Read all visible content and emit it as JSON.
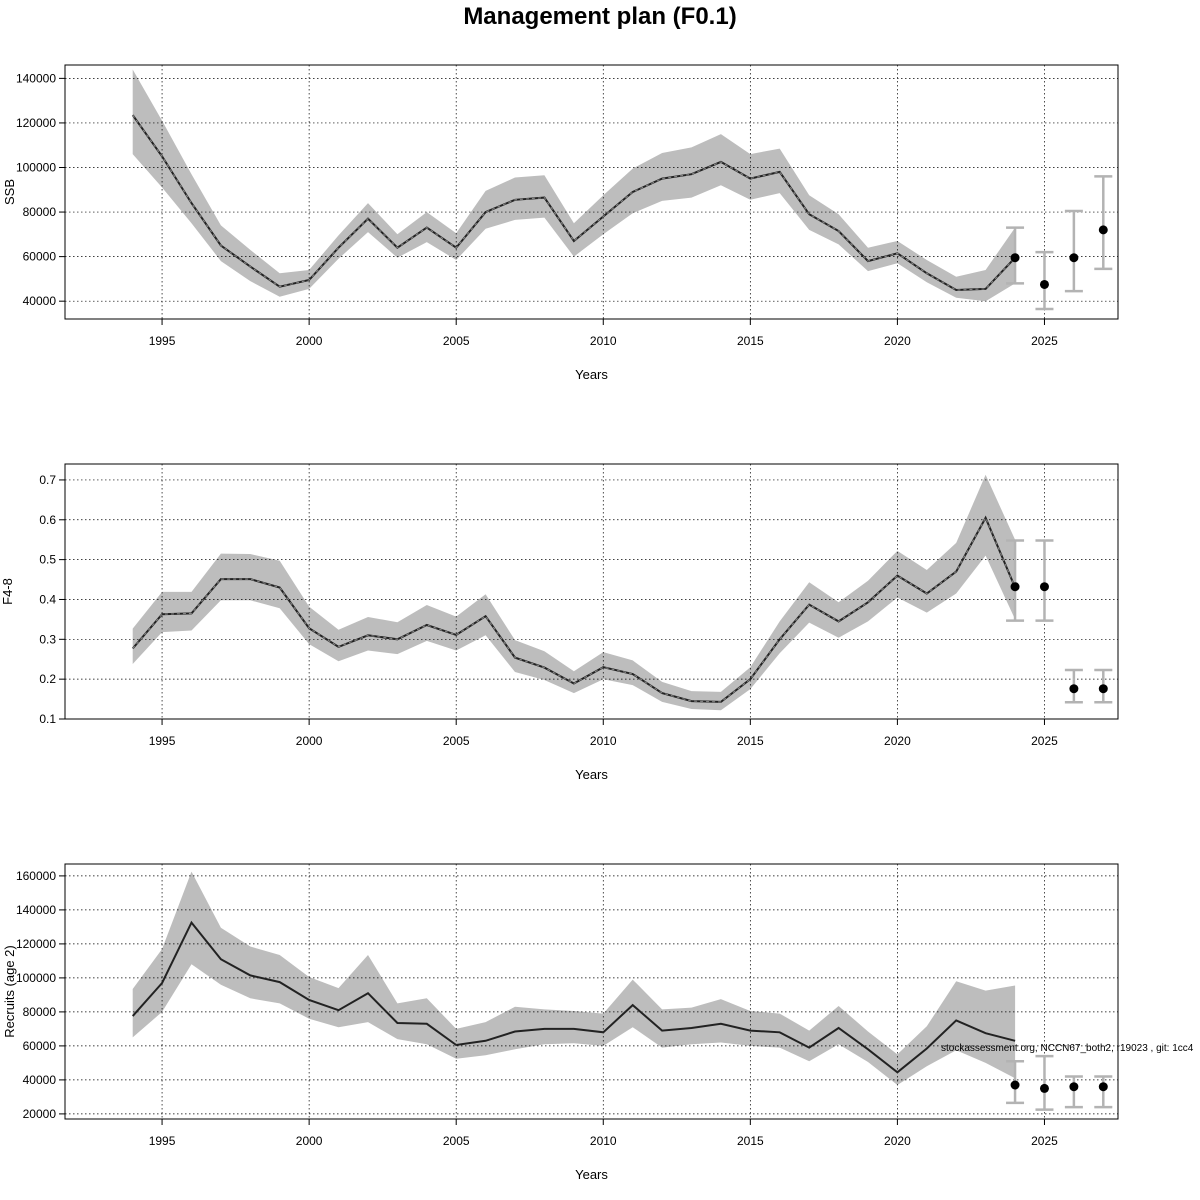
{
  "figure": {
    "title": "Management plan (F0.1)",
    "watermark": "stockassessment.org, NCCN67_both2, r19023 , git: 1cc4"
  },
  "colors": {
    "band": "#bdbdbd",
    "line": "#222222",
    "errorbar": "#b3b3b3",
    "point": "#000000",
    "grid": "#000000"
  },
  "chart_data": [
    {
      "type": "line",
      "name": "panel-ssb",
      "ylabel": "SSB",
      "xlabel": "Years",
      "xlim": [
        1991.7,
        2027.5
      ],
      "ylim": [
        32000,
        146000
      ],
      "xticks": [
        1995,
        2000,
        2005,
        2010,
        2015,
        2020,
        2025
      ],
      "yticks": [
        40000,
        60000,
        80000,
        100000,
        120000,
        140000
      ],
      "grid": true,
      "years": [
        1994,
        1995,
        1996,
        1997,
        1998,
        1999,
        2000,
        2001,
        2002,
        2003,
        2004,
        2005,
        2006,
        2007,
        2008,
        2009,
        2010,
        2011,
        2012,
        2013,
        2014,
        2015,
        2016,
        2017,
        2018,
        2019,
        2020,
        2021,
        2022,
        2023,
        2024
      ],
      "estimate": [
        123500,
        105000,
        84000,
        65000,
        55500,
        46500,
        49500,
        64000,
        77000,
        64000,
        73000,
        64000,
        80000,
        85500,
        86500,
        67000,
        78000,
        89000,
        95000,
        97000,
        102500,
        95000,
        98000,
        79000,
        71500,
        58000,
        61500,
        52500,
        45000,
        45500,
        59500
      ],
      "lower": [
        106000,
        91000,
        75000,
        58000,
        49000,
        42000,
        45500,
        59000,
        71000,
        59500,
        66500,
        58500,
        72500,
        76500,
        77500,
        60000,
        70000,
        79500,
        85000,
        86500,
        92000,
        85500,
        88500,
        72000,
        65500,
        53500,
        57000,
        48500,
        41500,
        40000,
        48000
      ],
      "upper": [
        144000,
        121000,
        97000,
        74000,
        63000,
        52500,
        54000,
        69500,
        84000,
        70000,
        80000,
        70500,
        89500,
        95500,
        96500,
        75000,
        87500,
        99500,
        106500,
        109000,
        115000,
        106000,
        108500,
        87500,
        79000,
        64000,
        67000,
        58500,
        51000,
        54000,
        73000
      ],
      "forecast": [
        {
          "year": 2024,
          "value": 59500,
          "lower": 48000,
          "upper": 73000
        },
        {
          "year": 2025,
          "value": 47500,
          "lower": 36500,
          "upper": 62000
        },
        {
          "year": 2026,
          "value": 59500,
          "lower": 44500,
          "upper": 80500
        },
        {
          "year": 2027,
          "value": 72000,
          "lower": 54500,
          "upper": 96000
        }
      ]
    },
    {
      "type": "line",
      "name": "panel-fbar",
      "ylabel": "F4-8",
      "xlabel": "Years",
      "xlim": [
        1991.7,
        2027.5
      ],
      "ylim": [
        0.1,
        0.74
      ],
      "xticks": [
        1995,
        2000,
        2005,
        2010,
        2015,
        2020,
        2025
      ],
      "yticks": [
        0.1,
        0.2,
        0.3,
        0.4,
        0.5,
        0.6,
        0.7
      ],
      "grid": true,
      "years": [
        1994,
        1995,
        1996,
        1997,
        1998,
        1999,
        2000,
        2001,
        2002,
        2003,
        2004,
        2005,
        2006,
        2007,
        2008,
        2009,
        2010,
        2011,
        2012,
        2013,
        2014,
        2015,
        2016,
        2017,
        2018,
        2019,
        2020,
        2021,
        2022,
        2023,
        2024
      ],
      "estimate": [
        0.277,
        0.363,
        0.365,
        0.451,
        0.451,
        0.43,
        0.328,
        0.281,
        0.31,
        0.3,
        0.336,
        0.311,
        0.358,
        0.254,
        0.229,
        0.189,
        0.23,
        0.213,
        0.165,
        0.145,
        0.143,
        0.2,
        0.3,
        0.387,
        0.345,
        0.393,
        0.46,
        0.415,
        0.47,
        0.605,
        0.43
      ],
      "lower": [
        0.238,
        0.318,
        0.322,
        0.398,
        0.398,
        0.378,
        0.288,
        0.245,
        0.272,
        0.263,
        0.296,
        0.272,
        0.31,
        0.218,
        0.198,
        0.165,
        0.2,
        0.185,
        0.143,
        0.125,
        0.122,
        0.175,
        0.265,
        0.342,
        0.304,
        0.345,
        0.405,
        0.367,
        0.415,
        0.51,
        0.35
      ],
      "upper": [
        0.327,
        0.419,
        0.419,
        0.515,
        0.514,
        0.497,
        0.382,
        0.324,
        0.356,
        0.343,
        0.386,
        0.357,
        0.413,
        0.298,
        0.27,
        0.22,
        0.268,
        0.247,
        0.193,
        0.17,
        0.168,
        0.23,
        0.345,
        0.443,
        0.393,
        0.447,
        0.522,
        0.474,
        0.542,
        0.713,
        0.55
      ],
      "forecast": [
        {
          "year": 2024,
          "value": 0.432,
          "lower": 0.347,
          "upper": 0.548
        },
        {
          "year": 2025,
          "value": 0.432,
          "lower": 0.347,
          "upper": 0.548
        },
        {
          "year": 2026,
          "value": 0.176,
          "lower": 0.142,
          "upper": 0.223
        },
        {
          "year": 2027,
          "value": 0.176,
          "lower": 0.142,
          "upper": 0.223
        }
      ]
    },
    {
      "type": "line",
      "name": "panel-recruits",
      "ylabel": "Recruits (age 2)",
      "xlabel": "Years",
      "xlim": [
        1991.7,
        2027.5
      ],
      "ylim": [
        17000,
        167000
      ],
      "xticks": [
        1995,
        2000,
        2005,
        2010,
        2015,
        2020,
        2025
      ],
      "yticks": [
        20000,
        40000,
        60000,
        80000,
        100000,
        120000,
        140000,
        160000
      ],
      "grid": true,
      "years": [
        1994,
        1995,
        1996,
        1997,
        1998,
        1999,
        2000,
        2001,
        2002,
        2003,
        2004,
        2005,
        2006,
        2007,
        2008,
        2009,
        2010,
        2011,
        2012,
        2013,
        2014,
        2015,
        2016,
        2017,
        2018,
        2019,
        2020,
        2021,
        2022,
        2023,
        2024
      ],
      "estimate": [
        77500,
        97000,
        132500,
        111000,
        101500,
        97500,
        87000,
        81000,
        91000,
        73500,
        73000,
        60500,
        63000,
        68500,
        70000,
        70000,
        68000,
        84000,
        69000,
        70500,
        73000,
        69000,
        68000,
        59000,
        70500,
        58000,
        44500,
        58500,
        75000,
        67500,
        63000
      ],
      "lower": [
        65000,
        80000,
        108000,
        96000,
        88000,
        85000,
        76000,
        71000,
        74000,
        64000,
        61000,
        52500,
        54500,
        58000,
        61000,
        61500,
        60000,
        71000,
        59000,
        61000,
        62000,
        60000,
        59000,
        51000,
        61000,
        50500,
        37000,
        48000,
        57500,
        50000,
        41000
      ],
      "upper": [
        93500,
        117000,
        162500,
        129500,
        118500,
        113500,
        100500,
        94000,
        113500,
        85000,
        88000,
        70000,
        74000,
        83000,
        81500,
        80500,
        79000,
        99000,
        81500,
        82500,
        87500,
        80500,
        79000,
        69000,
        83500,
        68500,
        55000,
        71500,
        98000,
        92500,
        95500
      ],
      "forecast": [
        {
          "year": 2024,
          "value": 37000,
          "lower": 26500,
          "upper": 51000
        },
        {
          "year": 2025,
          "value": 35000,
          "lower": 22500,
          "upper": 54000
        },
        {
          "year": 2026,
          "value": 36000,
          "lower": 24000,
          "upper": 42000
        },
        {
          "year": 2027,
          "value": 36000,
          "lower": 24000,
          "upper": 42000
        }
      ]
    }
  ]
}
